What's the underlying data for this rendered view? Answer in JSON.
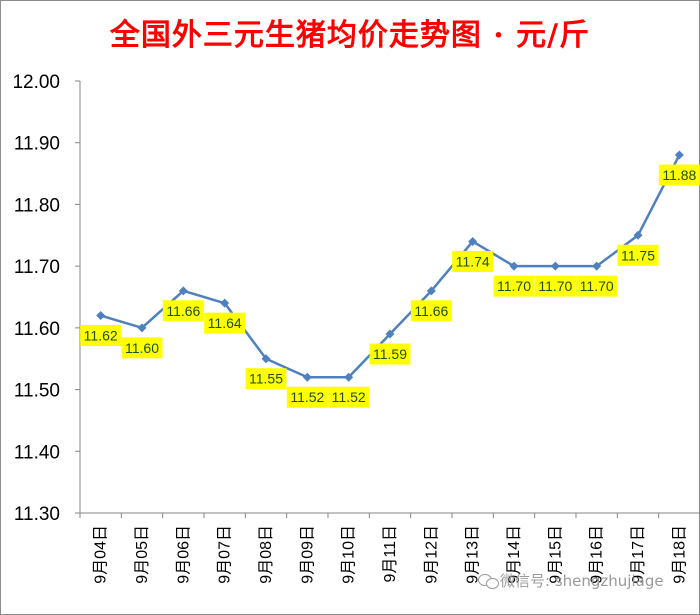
{
  "chart_data": {
    "type": "line",
    "title": "全国外三元生猪均价走势图 · 元/斤",
    "xlabel": "",
    "ylabel": "",
    "categories": [
      "9月04日",
      "9月05日",
      "9月06日",
      "9月07日",
      "9月08日",
      "9月09日",
      "9月10日",
      "9月11日",
      "9月12日",
      "9月13日",
      "9月14日",
      "9月15日",
      "9月16日",
      "9月17日",
      "9月18日"
    ],
    "series": [
      {
        "values": [
          11.62,
          11.6,
          11.66,
          11.64,
          11.55,
          11.52,
          11.52,
          11.59,
          11.66,
          11.74,
          11.7,
          11.7,
          11.7,
          11.75,
          11.88
        ],
        "labels": [
          "11.62",
          "11.60",
          "11.66",
          "11.64",
          "11.55",
          "11.52",
          "11.52",
          "11.59",
          "11.66",
          "11.74",
          "11.70",
          "11.70",
          "11.70",
          "11.75",
          "11.88"
        ],
        "color": "#4f81bd"
      }
    ],
    "ylim": [
      11.3,
      12.0
    ],
    "yticks": [
      "11.30",
      "11.40",
      "11.50",
      "11.60",
      "11.70",
      "11.80",
      "11.90",
      "12.00"
    ],
    "grid": false,
    "label_background": "#ffff00",
    "title_color": "#ff0000"
  },
  "watermark": {
    "text": "微信号: shengzhujiage"
  }
}
